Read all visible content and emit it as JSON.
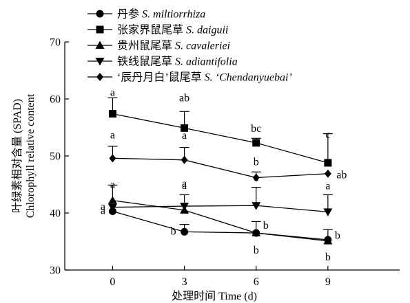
{
  "chart_data": {
    "type": "line",
    "x": [
      0,
      3,
      6,
      9
    ],
    "x_tick_labels": [
      "0",
      "3",
      "6",
      "9"
    ],
    "xlim": [
      -2,
      12
    ],
    "ylim": [
      30,
      70
    ],
    "y_ticks": [
      30,
      40,
      50,
      60,
      70
    ],
    "xlabel": "处理时间 Time (d)",
    "ylabel_cn": "叶绿素相对含量 (SPAD)",
    "ylabel_en": "Chlorophyll relative content",
    "grid": false,
    "legend_position": "top-left",
    "series": [
      {
        "name_cn": "丹参",
        "name_latin": "S. miltiorrhiza",
        "marker": "circle",
        "values": [
          40.3,
          36.7,
          36.5,
          35.3
        ],
        "error": [
          null,
          1.3,
          2.0,
          null
        ],
        "labels": [
          "a",
          "b",
          "b",
          "b"
        ]
      },
      {
        "name_cn": "张家界鼠尾草",
        "name_latin": "S. daiguii",
        "marker": "square",
        "values": [
          57.4,
          54.9,
          52.3,
          48.8
        ],
        "error": [
          2.8,
          2.9,
          0.8,
          5.1
        ],
        "labels": [
          "a",
          "ab",
          "bc",
          "c"
        ]
      },
      {
        "name_cn": "贵州鼠尾草",
        "name_latin": "S. cavaleriei",
        "marker": "triangle-up",
        "values": [
          42.2,
          40.5,
          36.5,
          35.1
        ],
        "error": [
          2.7,
          null,
          null,
          2.0
        ],
        "labels": [
          "a",
          "a",
          "b",
          "b"
        ]
      },
      {
        "name_cn": "铁线鼠尾草",
        "name_latin": "S. adiantifolia",
        "marker": "triangle-down",
        "values": [
          41.0,
          41.2,
          41.3,
          40.2
        ],
        "error": [
          null,
          2.0,
          3.2,
          3.0
        ],
        "labels": [
          "a",
          "a",
          "a",
          "a"
        ]
      },
      {
        "name_cn": "‘辰丹月白’鼠尾草",
        "name_latin": "S. ‘Chendanyuebai’",
        "marker": "diamond",
        "values": [
          49.6,
          49.3,
          46.2,
          46.9
        ],
        "error": [
          2.1,
          2.2,
          1.0,
          null
        ],
        "labels": [
          "a",
          "a",
          "b",
          "ab"
        ]
      }
    ]
  }
}
